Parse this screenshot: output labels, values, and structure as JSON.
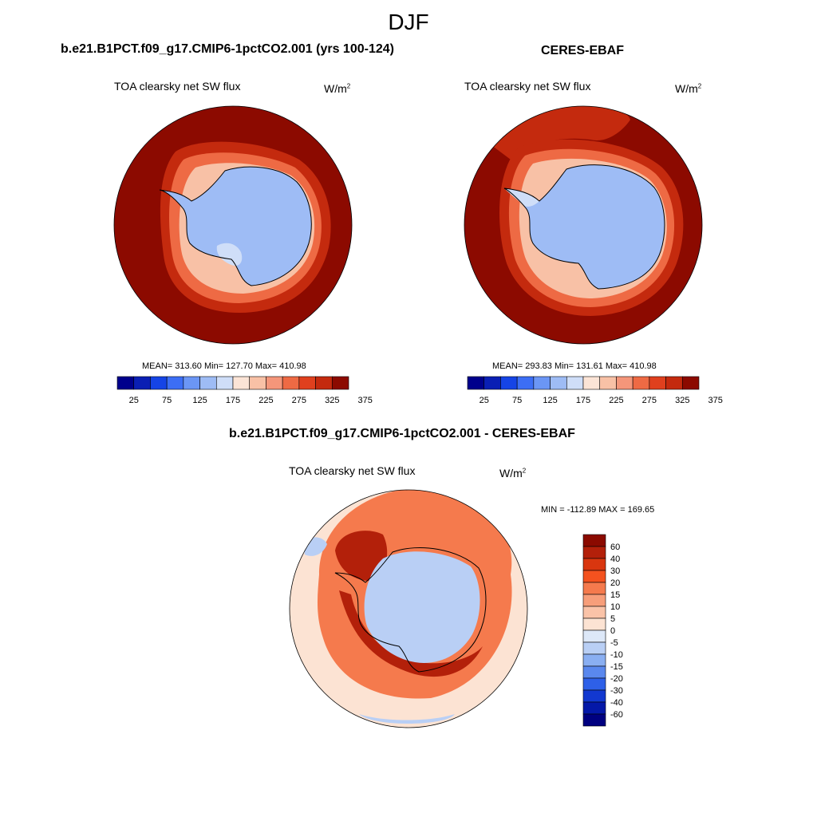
{
  "season_title": "DJF",
  "panels": [
    {
      "title": "b.e21.B1PCT.f09_g17.CMIP6-1pctCO2.001 (yrs 100-124)",
      "variable": "TOA clearsky net SW flux",
      "units": "W/m",
      "units_sup": "2",
      "stats": "MEAN= 313.60  Min= 127.70  Max= 410.98"
    },
    {
      "title": "CERES-EBAF",
      "variable": "TOA clearsky net SW flux",
      "units": "W/m",
      "units_sup": "2",
      "stats": "MEAN= 293.83  Min= 131.61  Max= 410.98"
    }
  ],
  "difference": {
    "title": "b.e21.B1PCT.f09_g17.CMIP6-1pctCO2.001 - CERES-EBAF",
    "variable": "TOA clearsky net SW flux",
    "units": "W/m",
    "units_sup": "2",
    "minmax": "MIN = -112.89 MAX = 169.65"
  },
  "abs_colorbar": {
    "labels": [
      "25",
      "75",
      "125",
      "175",
      "225",
      "275",
      "325",
      "375"
    ],
    "colors": [
      "#00008c",
      "#0a1fb4",
      "#1544e6",
      "#3c6ef5",
      "#6b96f5",
      "#9ebcf5",
      "#cfdef8",
      "#fbe4d6",
      "#f8c1a6",
      "#f4967a",
      "#ee6a44",
      "#e0401e",
      "#c42a0e",
      "#8c0a00"
    ]
  },
  "diff_colorbar": {
    "labels": [
      "60",
      "40",
      "30",
      "20",
      "15",
      "10",
      "5",
      "0",
      "-5",
      "-10",
      "-15",
      "-20",
      "-30",
      "-40",
      "-60"
    ],
    "colors": [
      "#8b0a00",
      "#b3200a",
      "#d9360f",
      "#f4521f",
      "#f57a4d",
      "#f79e7a",
      "#fac3a8",
      "#fce3d3",
      "#dde8f8",
      "#b9cff5",
      "#8aaff2",
      "#5a88ee",
      "#2e60e8",
      "#1238d0",
      "#0418a8",
      "#000080"
    ]
  },
  "map_colors": {
    "ocean_high": "#8c0a00",
    "ice_ring_1": "#c42a0e",
    "ice_ring_2": "#ee6a44",
    "ice_ring_3": "#f8c1a6",
    "land_ice": "#9ebcf5",
    "land_ice_light": "#cfdef8",
    "coast": "#000000",
    "diff_bg": "#fce3d3",
    "diff_warm": "#f57a4d",
    "diff_hot": "#b3200a",
    "diff_cool": "#b9cff5"
  }
}
